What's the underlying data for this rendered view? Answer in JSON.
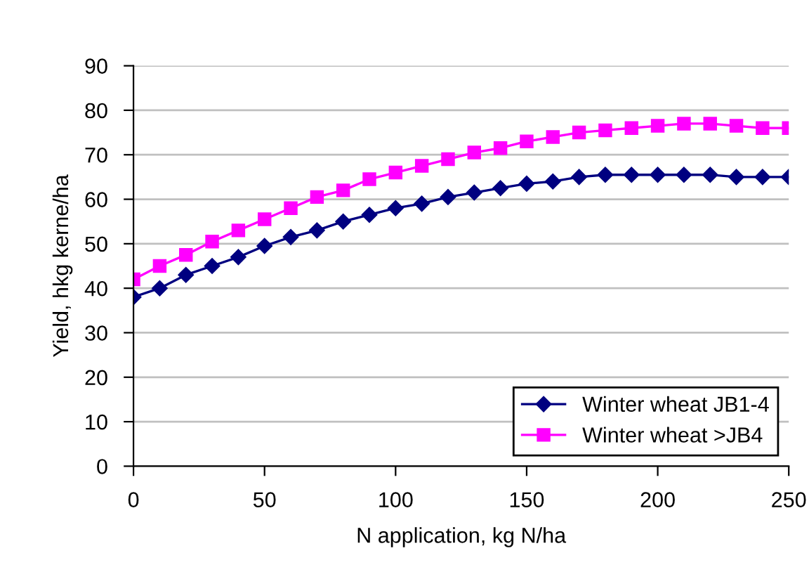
{
  "chart_data": {
    "type": "line",
    "xlabel": "N application, kg N/ha",
    "ylabel": "Yield, hkg kerne/ha",
    "x": [
      0,
      10,
      20,
      30,
      40,
      50,
      60,
      70,
      80,
      90,
      100,
      110,
      120,
      130,
      140,
      150,
      160,
      170,
      180,
      190,
      200,
      210,
      220,
      230,
      240,
      250
    ],
    "series": [
      {
        "name": "Winter wheat JB1-4",
        "color": "#000080",
        "marker": "diamond",
        "values": [
          38,
          40,
          43,
          45,
          47,
          49.5,
          51.5,
          53,
          55,
          56.5,
          58,
          59,
          60.5,
          61.5,
          62.5,
          63.5,
          64,
          65,
          65.5,
          65.5,
          65.5,
          65.5,
          65.5,
          65,
          65,
          65
        ]
      },
      {
        "name": "Winter wheat >JB4",
        "color": "#ff00ff",
        "marker": "square",
        "values": [
          42,
          45,
          47.5,
          50.5,
          53,
          55.5,
          58,
          60.5,
          62,
          64.5,
          66,
          67.5,
          69,
          70.5,
          71.5,
          73,
          74,
          75,
          75.5,
          76,
          76.5,
          77,
          77,
          76.5,
          76,
          76
        ]
      }
    ],
    "xlim": [
      0,
      250
    ],
    "xticks": [
      0,
      50,
      100,
      150,
      200,
      250
    ],
    "ylim": [
      0,
      90
    ],
    "yticks": [
      0,
      10,
      20,
      30,
      40,
      50,
      60,
      70,
      80,
      90
    ],
    "grid": "y",
    "legend": "bottom right",
    "line_style": "solid"
  }
}
